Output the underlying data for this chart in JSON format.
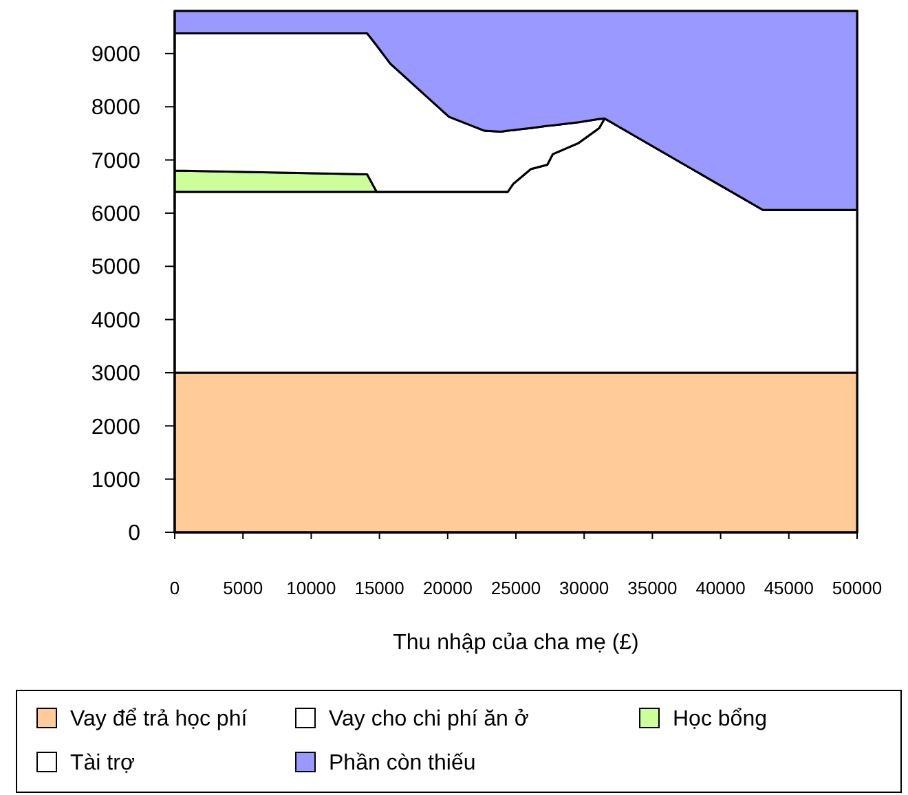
{
  "chart_data": {
    "type": "area",
    "stacked": true,
    "xlabel": "Thu nhập của cha mẹ (£)",
    "x": [
      0,
      14100,
      14800,
      15800,
      20100,
      22700,
      23900,
      24400,
      24800,
      26100,
      27300,
      27700,
      29600,
      31100,
      31500,
      43100,
      50000
    ],
    "series": [
      {
        "name": "Vay để trả học phí",
        "color": "#ffcc99",
        "values": [
          3000,
          3000,
          3000,
          3000,
          3000,
          3000,
          3000,
          3000,
          3000,
          3000,
          3000,
          3000,
          3000,
          3000,
          3000,
          3000,
          3000
        ]
      },
      {
        "name": "Vay cho chi phí ăn ở",
        "color": "#ffffff",
        "values": [
          3400,
          3400,
          3400,
          3400,
          3400,
          3400,
          3400,
          3400,
          3550,
          3830,
          3910,
          4110,
          4320,
          4600,
          4780,
          3060,
          3060
        ]
      },
      {
        "name": "Học bổng",
        "color": "#ccff99",
        "values": [
          400,
          330,
          0,
          0,
          0,
          0,
          0,
          0,
          0,
          0,
          0,
          0,
          0,
          0,
          0,
          0,
          0
        ]
      },
      {
        "name": "Tài trợ",
        "color": "#ffffff",
        "values": [
          2580,
          2650,
          2750,
          2410,
          1410,
          1150,
          1130,
          1150,
          1010,
          770,
          730,
          540,
          390,
          170,
          0,
          0,
          0
        ]
      },
      {
        "name": "Phần còn thiếu",
        "color": "#9999ff",
        "values": [
          420,
          420,
          650,
          990,
          1990,
          2250,
          2270,
          2250,
          2240,
          2200,
          2160,
          2150,
          2090,
          2030,
          2020,
          3740,
          3740
        ]
      }
    ],
    "xlim": [
      0,
      50000
    ],
    "xticks": [
      0,
      5000,
      10000,
      15000,
      20000,
      25000,
      30000,
      35000,
      40000,
      45000,
      50000
    ],
    "ylim": [
      0,
      9800
    ],
    "yticks": [
      0,
      1000,
      2000,
      3000,
      4000,
      5000,
      6000,
      7000,
      8000,
      9000
    ],
    "legend": "bottom"
  }
}
